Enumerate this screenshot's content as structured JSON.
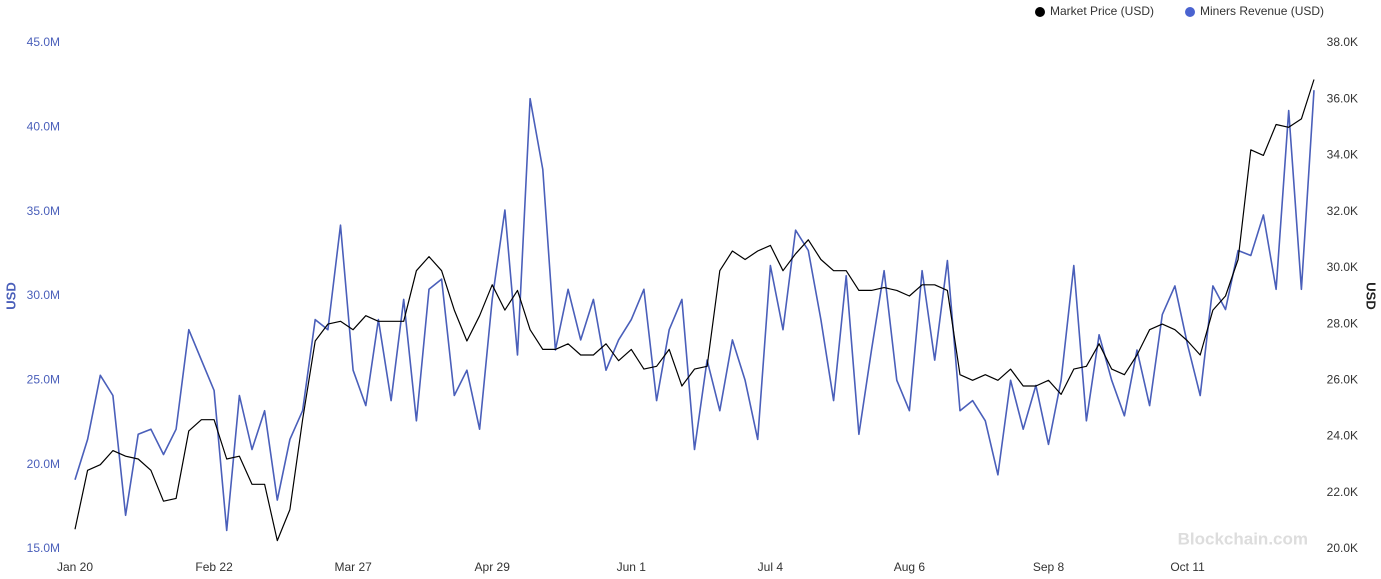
{
  "chart_data": {
    "type": "line",
    "y_label": "USD",
    "y2_label": "USD",
    "watermark": "Blockchain.com",
    "legend": "top-right",
    "grid": false,
    "categories": [
      "Jan 20",
      null,
      null,
      null,
      null,
      null,
      null,
      null,
      null,
      null,
      null,
      "Feb 22",
      null,
      null,
      null,
      null,
      null,
      null,
      null,
      null,
      null,
      null,
      "Mar 27",
      null,
      null,
      null,
      null,
      null,
      null,
      null,
      null,
      null,
      null,
      "Apr 29",
      null,
      null,
      null,
      null,
      null,
      null,
      null,
      null,
      null,
      null,
      "Jun 1",
      null,
      null,
      null,
      null,
      null,
      null,
      null,
      null,
      null,
      null,
      "Jul 4",
      null,
      null,
      null,
      null,
      null,
      null,
      null,
      null,
      null,
      null,
      "Aug 6",
      null,
      null,
      null,
      null,
      null,
      null,
      null,
      null,
      null,
      null,
      "Sep 8",
      null,
      null,
      null,
      null,
      null,
      null,
      null,
      null,
      null,
      null,
      "Oct 11",
      null,
      null,
      null,
      null,
      null,
      null,
      null,
      null,
      null,
      null
    ],
    "ylim": [
      15000000,
      45000000
    ],
    "yticks": [
      {
        "value": 15000000,
        "label": "15.0M"
      },
      {
        "value": 20000000,
        "label": "20.0M"
      },
      {
        "value": 25000000,
        "label": "25.0M"
      },
      {
        "value": 30000000,
        "label": "30.0M"
      },
      {
        "value": 35000000,
        "label": "35.0M"
      },
      {
        "value": 40000000,
        "label": "40.0M"
      },
      {
        "value": 45000000,
        "label": "45.0M"
      }
    ],
    "y2lim": [
      20000,
      38000
    ],
    "y2ticks": [
      {
        "value": 20000,
        "label": "20.0K"
      },
      {
        "value": 22000,
        "label": "22.0K"
      },
      {
        "value": 24000,
        "label": "24.0K"
      },
      {
        "value": 26000,
        "label": "26.0K"
      },
      {
        "value": 28000,
        "label": "28.0K"
      },
      {
        "value": 30000,
        "label": "30.0K"
      },
      {
        "value": 32000,
        "label": "32.0K"
      },
      {
        "value": 34000,
        "label": "34.0K"
      },
      {
        "value": 36000,
        "label": "36.0K"
      },
      {
        "value": 38000,
        "label": "38.0K"
      }
    ],
    "series": [
      {
        "name": "Market Price (USD)",
        "color": "#000000",
        "axis": "y2",
        "values": [
          20700,
          22800,
          23000,
          23500,
          23300,
          23200,
          22800,
          21700,
          21800,
          24200,
          24600,
          24600,
          23200,
          23300,
          22300,
          22300,
          20300,
          21400,
          24600,
          27400,
          28000,
          28100,
          27800,
          28300,
          28100,
          28100,
          28100,
          29900,
          30400,
          29900,
          28500,
          27400,
          28300,
          29400,
          28500,
          29200,
          27800,
          27100,
          27100,
          27300,
          26900,
          26900,
          27300,
          26700,
          27100,
          26400,
          26500,
          27100,
          25800,
          26400,
          26500,
          29900,
          30600,
          30300,
          30600,
          30800,
          29900,
          30500,
          31000,
          30300,
          29900,
          29900,
          29200,
          29200,
          29300,
          29200,
          29000,
          29400,
          29400,
          29200,
          26200,
          26000,
          26200,
          26000,
          26400,
          25800,
          25800,
          26000,
          25500,
          26400,
          26500,
          27300,
          26400,
          26200,
          26900,
          27800,
          28000,
          27800,
          27400,
          26900,
          28500,
          29000,
          30300,
          34200,
          34000,
          35100,
          35000,
          35300,
          36700
        ]
      },
      {
        "name": "Miners Revenue (USD)",
        "color": "#4a5fba",
        "values": [
          19100000,
          21500000,
          25300000,
          24100000,
          17000000,
          21800000,
          22100000,
          20600000,
          22100000,
          28000000,
          26200000,
          24400000,
          16100000,
          24100000,
          20900000,
          23200000,
          17900000,
          21500000,
          23200000,
          28600000,
          28000000,
          34200000,
          25600000,
          23500000,
          28600000,
          23800000,
          29800000,
          22600000,
          30400000,
          31000000,
          24100000,
          25600000,
          22100000,
          29800000,
          35100000,
          26500000,
          41700000,
          37500000,
          26800000,
          30400000,
          27400000,
          29800000,
          25600000,
          27400000,
          28600000,
          30400000,
          23800000,
          28000000,
          29800000,
          20900000,
          26200000,
          23200000,
          27400000,
          25000000,
          21500000,
          31800000,
          28000000,
          33900000,
          32700000,
          28600000,
          23800000,
          31200000,
          21800000,
          26800000,
          31500000,
          25000000,
          23200000,
          31500000,
          26200000,
          32100000,
          23200000,
          23800000,
          22600000,
          19400000,
          25000000,
          22100000,
          24700000,
          21200000,
          25000000,
          31800000,
          22600000,
          27700000,
          25000000,
          22900000,
          26800000,
          23500000,
          28900000,
          30600000,
          27100000,
          24100000,
          30600000,
          29200000,
          32700000,
          32400000,
          34800000,
          30400000,
          41000000,
          30400000,
          42200000
        ]
      }
    ]
  }
}
